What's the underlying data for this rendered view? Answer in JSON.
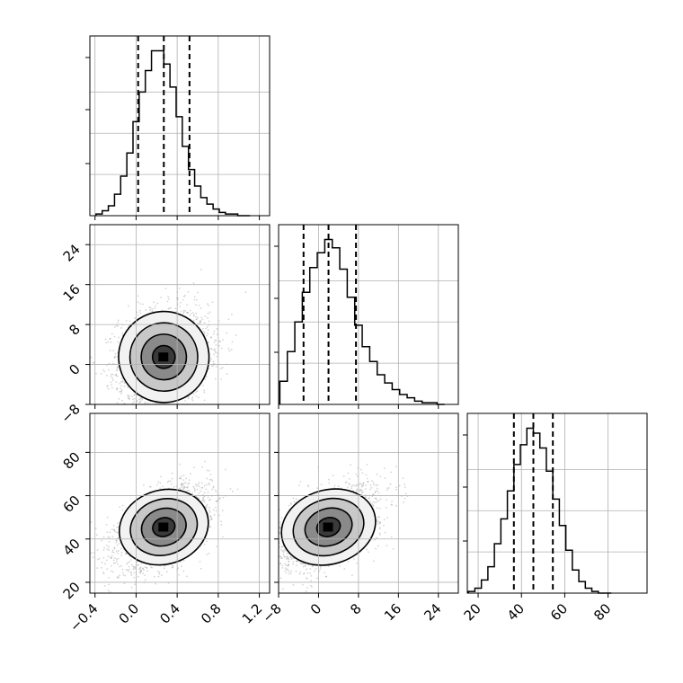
{
  "figure": {
    "type": "corner plot"
  },
  "chart_data": [
    {
      "type": "histogram",
      "variable_index": 0,
      "x": [
        -0.36,
        -0.3,
        -0.24,
        -0.18,
        -0.12,
        -0.06,
        0.0,
        0.06,
        0.12,
        0.18,
        0.24,
        0.3,
        0.36,
        0.42,
        0.48,
        0.54,
        0.6,
        0.66,
        0.72,
        0.78,
        0.84,
        0.9,
        0.96,
        1.02,
        1.08
      ],
      "values": [
        1,
        3,
        6,
        13,
        24,
        38,
        57,
        75,
        88,
        100,
        100,
        92,
        78,
        60,
        42,
        28,
        18,
        11,
        7,
        4,
        2,
        1,
        1,
        0,
        0
      ],
      "quantiles": [
        0.02,
        0.27,
        0.52
      ],
      "xlim": [
        -0.45,
        1.3
      ],
      "xticks": [
        "−0.4",
        "0.0",
        "0.4",
        "0.8",
        "1.2"
      ],
      "grid": true
    },
    {
      "type": "histogram",
      "variable_index": 1,
      "x": [
        -7,
        -5.5,
        -4,
        -2.5,
        -1,
        0.5,
        2,
        3.5,
        5,
        6.5,
        8,
        9.5,
        11,
        12.5,
        14,
        15.5,
        17,
        18.5,
        20,
        21.5,
        23,
        24.5
      ],
      "values": [
        14,
        32,
        50,
        68,
        83,
        92,
        100,
        95,
        82,
        65,
        48,
        35,
        26,
        18,
        13,
        9,
        6,
        4,
        2,
        1,
        1,
        0
      ],
      "quantiles": [
        -3,
        2,
        7.5
      ],
      "xlim": [
        -8,
        28
      ],
      "xticks": [
        "−8",
        "0",
        "8",
        "16",
        "24"
      ],
      "grid": true
    },
    {
      "type": "histogram",
      "variable_index": 2,
      "x": [
        17,
        20,
        23,
        26,
        29,
        32,
        35,
        38,
        41,
        44,
        47,
        50,
        53,
        56,
        59,
        62,
        65,
        68,
        71,
        74,
        77,
        80
      ],
      "values": [
        1,
        3,
        8,
        16,
        30,
        45,
        62,
        78,
        90,
        100,
        97,
        88,
        74,
        57,
        41,
        26,
        14,
        7,
        3,
        1,
        0,
        0
      ],
      "quantiles": [
        36.5,
        45.5,
        54.5
      ],
      "xlim": [
        15,
        98
      ],
      "xticks": [
        "20",
        "40",
        "60",
        "80"
      ],
      "grid": true
    },
    {
      "type": "scatter",
      "x_variable": 0,
      "y_variable": 1,
      "center": [
        0.27,
        1.5
      ],
      "spread": [
        0.22,
        4.8
      ],
      "correlation": 0.15,
      "num_points": 2600,
      "contour_levels": [
        0.5,
        1.0,
        1.5,
        2.0
      ],
      "xlim": [
        -0.45,
        1.3
      ],
      "ylim": [
        -8,
        28
      ],
      "xticks": [
        "−0.4",
        "0.0",
        "0.4",
        "0.8",
        "1.2"
      ],
      "yticks": [
        "−8",
        "0",
        "8",
        "16",
        "24"
      ],
      "grid": true
    },
    {
      "type": "scatter",
      "x_variable": 0,
      "y_variable": 2,
      "center": [
        0.27,
        45.5
      ],
      "spread": [
        0.22,
        9.0
      ],
      "correlation": 0.5,
      "num_points": 2600,
      "contour_levels": [
        0.5,
        1.0,
        1.5,
        2.0
      ],
      "xlim": [
        -0.45,
        1.3
      ],
      "ylim": [
        15,
        98
      ],
      "xticks": [
        "−0.4",
        "0.0",
        "0.4",
        "0.8",
        "1.2"
      ],
      "yticks": [
        "20",
        "40",
        "60",
        "80"
      ],
      "grid": true
    },
    {
      "type": "scatter",
      "x_variable": 1,
      "y_variable": 2,
      "center": [
        2.0,
        45.5
      ],
      "spread": [
        4.8,
        9.0
      ],
      "correlation": 0.5,
      "num_points": 2600,
      "contour_levels": [
        0.5,
        1.0,
        1.5,
        2.0
      ],
      "xlim": [
        -8,
        28
      ],
      "ylim": [
        15,
        98
      ],
      "xticks": [
        "−8",
        "0",
        "8",
        "16",
        "24"
      ],
      "yticks": [
        "20",
        "40",
        "60",
        "80"
      ],
      "grid": true
    }
  ]
}
